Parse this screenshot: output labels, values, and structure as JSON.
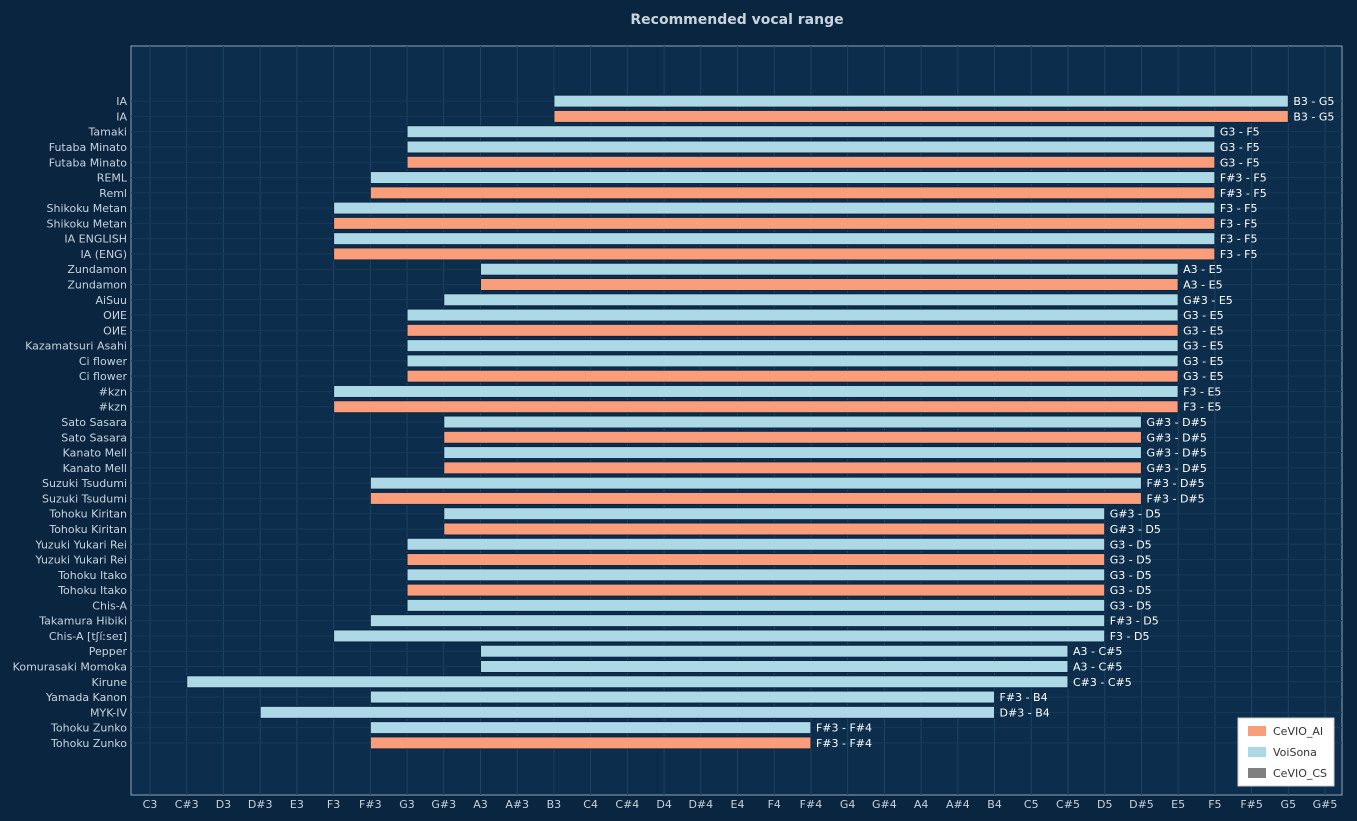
{
  "chart_data": {
    "type": "bar",
    "orientation": "horizontal",
    "title": "Recommended vocal range",
    "x_ticks": [
      "C3",
      "C#3",
      "D3",
      "D#3",
      "E3",
      "F3",
      "F#3",
      "G3",
      "G#3",
      "A3",
      "A#3",
      "B3",
      "C4",
      "C#4",
      "D4",
      "D#4",
      "E4",
      "F4",
      "F#4",
      "G4",
      "G#4",
      "A4",
      "A#4",
      "B4",
      "C5",
      "C#5",
      "D5",
      "D#5",
      "E5",
      "F5",
      "F#5",
      "G5",
      "G#5"
    ],
    "legend": [
      {
        "name": "CeVIO_AI",
        "color": "#fa9d7a"
      },
      {
        "name": "VoiSona",
        "color": "#add8e6"
      },
      {
        "name": "CeVIO_CS",
        "color": "#808080"
      }
    ],
    "legend_position": "bottom-right",
    "colors": {
      "CeVIO_AI": "#fa9d7a",
      "VoiSona": "#add8e6",
      "CeVIO_CS": "#808080"
    },
    "bars": [
      {
        "name": "IA",
        "series": "VoiSona",
        "low": "B3",
        "high": "G5",
        "label": "B3 - G5"
      },
      {
        "name": "IA",
        "series": "CeVIO_AI",
        "low": "B3",
        "high": "G5",
        "label": "B3 - G5"
      },
      {
        "name": "Tamaki",
        "series": "VoiSona",
        "low": "G3",
        "high": "F5",
        "label": "G3 - F5"
      },
      {
        "name": "Futaba Minato",
        "series": "VoiSona",
        "low": "G3",
        "high": "F5",
        "label": "G3 - F5"
      },
      {
        "name": "Futaba Minato",
        "series": "CeVIO_AI",
        "low": "G3",
        "high": "F5",
        "label": "G3 - F5"
      },
      {
        "name": "REML",
        "series": "VoiSona",
        "low": "F#3",
        "high": "F5",
        "label": "F#3 - F5"
      },
      {
        "name": "Reml",
        "series": "CeVIO_AI",
        "low": "F#3",
        "high": "F5",
        "label": "F#3 - F5"
      },
      {
        "name": "Shikoku Metan",
        "series": "VoiSona",
        "low": "F3",
        "high": "F5",
        "label": "F3 - F5"
      },
      {
        "name": "Shikoku Metan",
        "series": "CeVIO_AI",
        "low": "F3",
        "high": "F5",
        "label": "F3 - F5"
      },
      {
        "name": "IA ENGLISH",
        "series": "VoiSona",
        "low": "F3",
        "high": "F5",
        "label": "F3 - F5"
      },
      {
        "name": "IA (ENG)",
        "series": "CeVIO_AI",
        "low": "F3",
        "high": "F5",
        "label": "F3 - F5"
      },
      {
        "name": "Zundamon",
        "series": "VoiSona",
        "low": "A3",
        "high": "E5",
        "label": "A3 - E5"
      },
      {
        "name": "Zundamon",
        "series": "CeVIO_AI",
        "low": "A3",
        "high": "E5",
        "label": "A3 - E5"
      },
      {
        "name": "AiSuu",
        "series": "VoiSona",
        "low": "G#3",
        "high": "E5",
        "label": "G#3 - E5"
      },
      {
        "name": "ОИЕ",
        "series": "VoiSona",
        "low": "G3",
        "high": "E5",
        "label": "G3 - E5"
      },
      {
        "name": "ОИЕ",
        "series": "CeVIO_AI",
        "low": "G3",
        "high": "E5",
        "label": "G3 - E5"
      },
      {
        "name": "Kazamatsuri Asahi",
        "series": "VoiSona",
        "low": "G3",
        "high": "E5",
        "label": "G3 - E5"
      },
      {
        "name": "Ci flower",
        "series": "VoiSona",
        "low": "G3",
        "high": "E5",
        "label": "G3 - E5"
      },
      {
        "name": "Ci flower",
        "series": "CeVIO_AI",
        "low": "G3",
        "high": "E5",
        "label": "G3 - E5"
      },
      {
        "name": "#kzn",
        "series": "VoiSona",
        "low": "F3",
        "high": "E5",
        "label": "F3 - E5"
      },
      {
        "name": "#kzn",
        "series": "CeVIO_AI",
        "low": "F3",
        "high": "E5",
        "label": "F3 - E5"
      },
      {
        "name": "Sato Sasara",
        "series": "VoiSona",
        "low": "G#3",
        "high": "D#5",
        "label": "G#3 - D#5"
      },
      {
        "name": "Sato Sasara",
        "series": "CeVIO_AI",
        "low": "G#3",
        "high": "D#5",
        "label": "G#3 - D#5"
      },
      {
        "name": "Kanato Mell",
        "series": "VoiSona",
        "low": "G#3",
        "high": "D#5",
        "label": "G#3 - D#5"
      },
      {
        "name": "Kanato Mell",
        "series": "CeVIO_AI",
        "low": "G#3",
        "high": "D#5",
        "label": "G#3 - D#5"
      },
      {
        "name": "Suzuki Tsudumi",
        "series": "VoiSona",
        "low": "F#3",
        "high": "D#5",
        "label": "F#3 - D#5"
      },
      {
        "name": "Suzuki Tsudumi",
        "series": "CeVIO_AI",
        "low": "F#3",
        "high": "D#5",
        "label": "F#3 - D#5"
      },
      {
        "name": "Tohoku Kiritan",
        "series": "VoiSona",
        "low": "G#3",
        "high": "D5",
        "label": "G#3 - D5"
      },
      {
        "name": "Tohoku Kiritan",
        "series": "CeVIO_AI",
        "low": "G#3",
        "high": "D5",
        "label": "G#3 - D5"
      },
      {
        "name": "Yuzuki Yukari Rei",
        "series": "VoiSona",
        "low": "G3",
        "high": "D5",
        "label": "G3 - D5"
      },
      {
        "name": "Yuzuki Yukari Rei",
        "series": "CeVIO_AI",
        "low": "G3",
        "high": "D5",
        "label": "G3 - D5"
      },
      {
        "name": "Tohoku Itako",
        "series": "VoiSona",
        "low": "G3",
        "high": "D5",
        "label": "G3 - D5"
      },
      {
        "name": "Tohoku Itako",
        "series": "CeVIO_AI",
        "low": "G3",
        "high": "D5",
        "label": "G3 - D5"
      },
      {
        "name": "Chis-A",
        "series": "VoiSona",
        "low": "G3",
        "high": "D5",
        "label": "G3 - D5"
      },
      {
        "name": "Takamura Hibiki",
        "series": "VoiSona",
        "low": "F#3",
        "high": "D5",
        "label": "F#3 - D5"
      },
      {
        "name": "Chis-A [tʃíːseɪ]",
        "series": "VoiSona",
        "low": "F3",
        "high": "D5",
        "label": "F3 - D5"
      },
      {
        "name": "Pepper",
        "series": "VoiSona",
        "low": "A3",
        "high": "C#5",
        "label": "A3 - C#5"
      },
      {
        "name": "Komurasaki Momoka",
        "series": "VoiSona",
        "low": "A3",
        "high": "C#5",
        "label": "A3 - C#5"
      },
      {
        "name": "Kirune",
        "series": "VoiSona",
        "low": "C#3",
        "high": "C#5",
        "label": "C#3 - C#5"
      },
      {
        "name": "Yamada Kanon",
        "series": "VoiSona",
        "low": "F#3",
        "high": "B4",
        "label": "F#3 - B4"
      },
      {
        "name": "MYK-IV",
        "series": "VoiSona",
        "low": "D#3",
        "high": "B4",
        "label": "D#3 - B4"
      },
      {
        "name": "Tohoku Zunko",
        "series": "VoiSona",
        "low": "F#3",
        "high": "F#4",
        "label": "F#3 - F#4"
      },
      {
        "name": "Tohoku Zunko",
        "series": "CeVIO_AI",
        "low": "F#3",
        "high": "F#4",
        "label": "F#3 - F#4"
      }
    ]
  }
}
